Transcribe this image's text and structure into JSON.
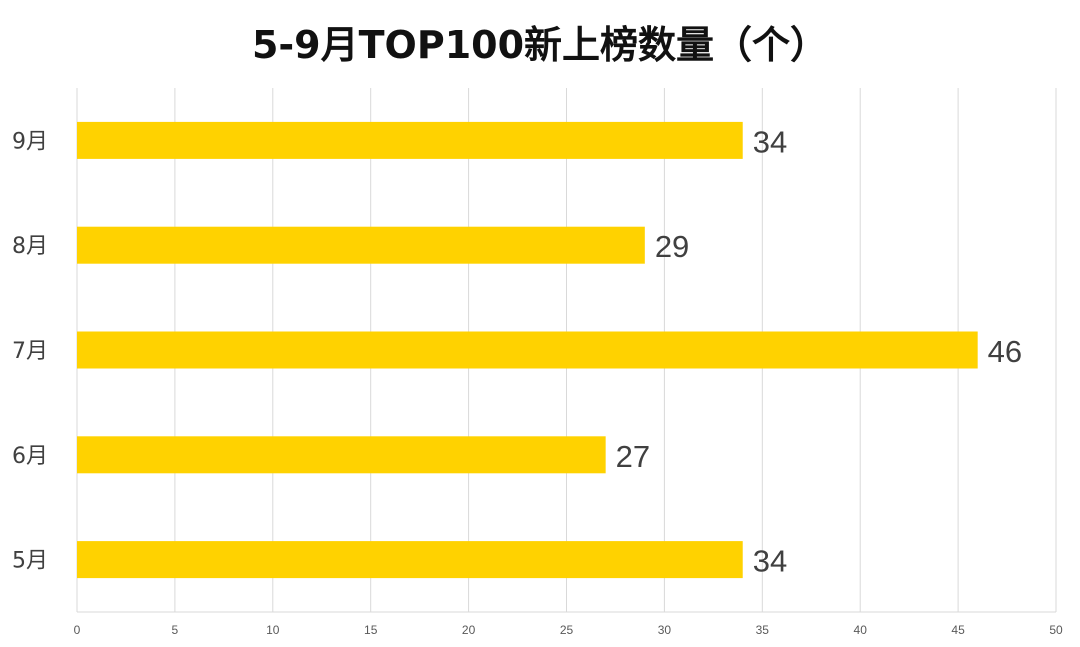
{
  "chart_data": {
    "type": "bar",
    "orientation": "horizontal",
    "title": "5-9月TOP100新上榜数量（个）",
    "categories": [
      "5月",
      "6月",
      "7月",
      "8月",
      "9月"
    ],
    "values": [
      34,
      27,
      46,
      29,
      34
    ],
    "xlim": [
      0,
      50
    ],
    "xticks": [
      0,
      5,
      10,
      15,
      20,
      25,
      30,
      35,
      40,
      45,
      50
    ],
    "grid": true,
    "data_labels": true,
    "bar_color": "#FFD200"
  }
}
